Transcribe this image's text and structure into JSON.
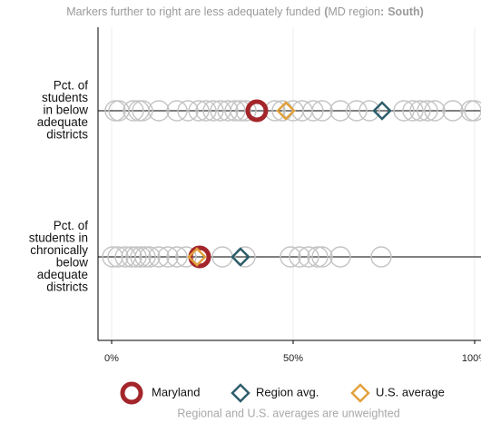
{
  "chart_data": {
    "type": "dot",
    "title_parts": [
      "Markers further to right are less adequately funded",
      "(",
      "MD region",
      ":",
      "South)"
    ],
    "title_bold": [
      false,
      true,
      false,
      true,
      true
    ],
    "note": "Regional and U.S. averages are unweighted",
    "categories": [
      [
        "Pct. of",
        "students",
        "in below",
        "adequate",
        "districts"
      ],
      [
        "Pct. of",
        "students in",
        "chronically",
        "below",
        "adequate",
        "districts"
      ]
    ],
    "xlim": [
      -3.75,
      101.75
    ],
    "xticks": [
      {
        "value": 0,
        "label": "0%"
      },
      {
        "value": 50,
        "label": "50%"
      },
      {
        "value": 100,
        "label": "100%"
      }
    ],
    "grid": true,
    "others": {
      "color": "#c4c4c4",
      "values": [
        [
          1,
          2,
          6,
          7.5,
          8.5,
          13,
          18,
          21,
          24,
          26,
          28,
          30,
          32,
          34,
          35.5,
          37,
          45,
          47,
          50,
          52.5,
          55.5,
          58,
          63,
          67.5,
          71,
          80.5,
          83,
          85,
          87,
          89,
          94,
          99,
          100
        ],
        [
          0.25,
          1.75,
          3.75,
          5.5,
          6.75,
          8,
          9.25,
          10.5,
          13,
          15.5,
          18,
          20.5,
          30.5,
          36.75,
          49.25,
          51.75,
          54.25,
          56.75,
          58,
          63,
          74.25
        ]
      ]
    },
    "series": [
      {
        "name": "Maryland",
        "color": "#a3262a",
        "marker": "circle",
        "values": [
          40,
          24.25
        ]
      },
      {
        "name": "Region avg.",
        "color": "#2e5e6b",
        "marker": "diamond",
        "values": [
          74.5,
          35.5
        ]
      },
      {
        "name": "U.S. average",
        "color": "#e2a13c",
        "marker": "diamond",
        "values": [
          48,
          23.5
        ]
      }
    ]
  }
}
